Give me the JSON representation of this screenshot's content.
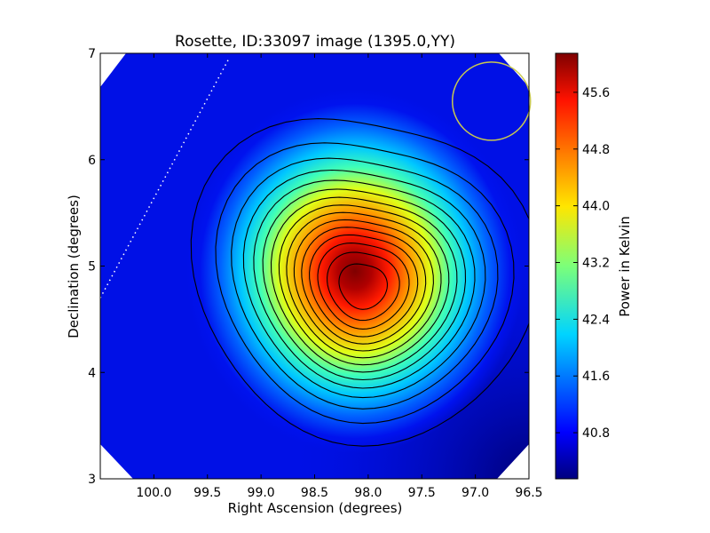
{
  "chart_data": {
    "type": "heatmap",
    "title": "Rosette, ID:33097 image (1395.0,YY)",
    "xlabel": "Right Ascension (degrees)",
    "ylabel": "Declination (degrees)",
    "xlim": [
      100.5,
      96.5
    ],
    "ylim": [
      3,
      7
    ],
    "xticks": [
      "100.0",
      "99.5",
      "99.0",
      "98.5",
      "98.0",
      "97.5",
      "97.0",
      "96.5"
    ],
    "xtick_values": [
      100.0,
      99.5,
      99.0,
      98.5,
      98.0,
      97.5,
      97.0,
      96.5
    ],
    "yticks": [
      "3",
      "4",
      "5",
      "6",
      "7"
    ],
    "ytick_values": [
      3,
      4,
      5,
      6,
      7
    ],
    "colorbar": {
      "label": "Power in Kelvin",
      "range": [
        40.15,
        46.15
      ],
      "ticks": [
        "40.8",
        "41.6",
        "42.4",
        "43.2",
        "44.0",
        "44.8",
        "45.6"
      ],
      "tick_values": [
        40.8,
        41.6,
        42.4,
        43.2,
        44.0,
        44.8,
        45.6
      ],
      "colormap": "jet"
    },
    "peak": {
      "ra": 98.05,
      "dec": 4.8,
      "value": 46.0
    },
    "background_level": 40.5,
    "contour_levels": [
      40.8,
      41.15,
      41.5,
      41.85,
      42.2,
      42.55,
      42.9,
      43.25,
      43.6,
      43.95,
      44.3,
      44.65,
      45.0,
      45.35,
      45.7
    ],
    "beam_circle": {
      "ra": 96.85,
      "dec": 6.55,
      "color": "#c8c850"
    },
    "dotted_line": {
      "from": {
        "ra": 100.5,
        "dec": 4.7
      },
      "to": {
        "ra": 99.3,
        "dec": 6.95
      },
      "color": "#ffffff"
    },
    "grid": false,
    "legend": "none"
  }
}
